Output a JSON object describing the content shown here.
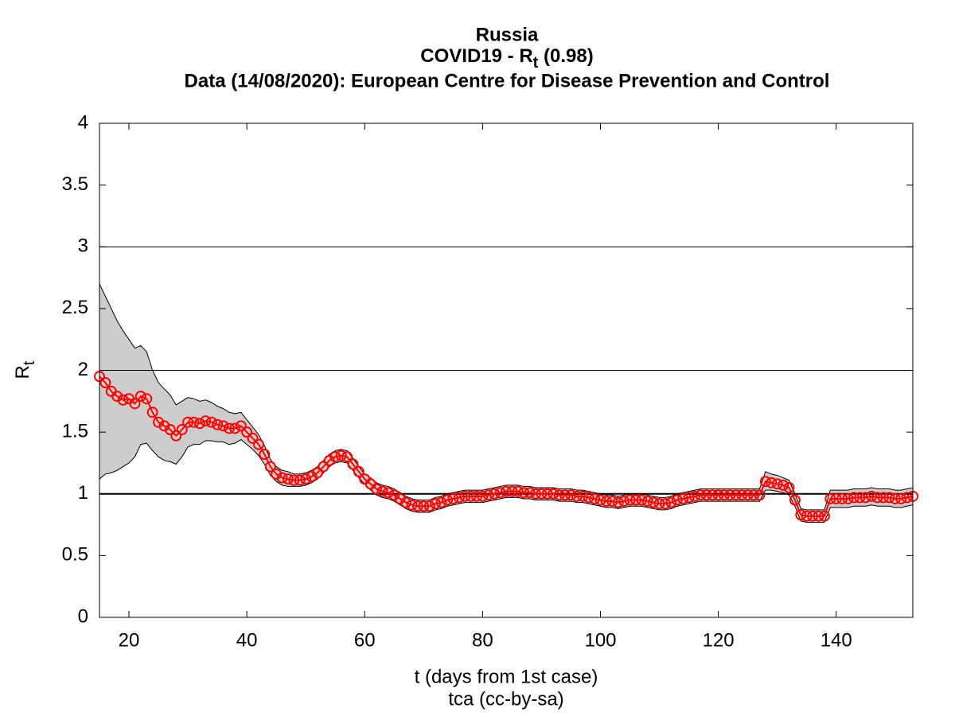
{
  "chart_data": {
    "type": "line",
    "title": "Russia",
    "subtitle_parts": [
      "COVID19 - R",
      "t",
      " (0.98)"
    ],
    "source": "Data (14/08/2020): European Centre for Disease Prevention and Control",
    "xlabel": "t (days from 1st case)",
    "caption": "tca (cc-by-sa)",
    "ylabel_parts": [
      "R",
      "t"
    ],
    "xlim": [
      15,
      153
    ],
    "ylim": [
      0,
      4
    ],
    "xticks": [
      20,
      40,
      60,
      80,
      100,
      120,
      140
    ],
    "yticks": [
      0,
      0.5,
      1,
      1.5,
      2,
      2.5,
      3,
      3.5,
      4
    ],
    "hlines": [
      1,
      2,
      3
    ],
    "color": "#ff0000",
    "band_color": "#cccccc",
    "x": [
      15,
      16,
      17,
      18,
      19,
      20,
      21,
      22,
      23,
      24,
      25,
      26,
      27,
      28,
      29,
      30,
      31,
      32,
      33,
      34,
      35,
      36,
      37,
      38,
      39,
      40,
      41,
      42,
      43,
      44,
      45,
      46,
      47,
      48,
      49,
      50,
      51,
      52,
      53,
      54,
      55,
      56,
      57,
      58,
      59,
      60,
      61,
      62,
      63,
      64,
      65,
      66,
      67,
      68,
      69,
      70,
      71,
      72,
      73,
      74,
      75,
      76,
      77,
      78,
      79,
      80,
      81,
      82,
      83,
      84,
      85,
      86,
      87,
      88,
      89,
      90,
      91,
      92,
      93,
      94,
      95,
      96,
      97,
      98,
      99,
      100,
      101,
      102,
      103,
      104,
      105,
      106,
      107,
      108,
      109,
      110,
      111,
      112,
      113,
      114,
      115,
      116,
      117,
      118,
      119,
      120,
      121,
      122,
      123,
      124,
      125,
      126,
      127,
      128,
      129,
      130,
      131,
      132,
      133,
      134,
      135,
      136,
      137,
      138,
      139,
      140,
      141,
      142,
      143,
      144,
      145,
      146,
      147,
      148,
      149,
      150,
      151,
      152,
      153
    ],
    "values": [
      1.95,
      1.9,
      1.83,
      1.79,
      1.76,
      1.77,
      1.73,
      1.79,
      1.77,
      1.66,
      1.58,
      1.55,
      1.52,
      1.47,
      1.52,
      1.58,
      1.58,
      1.57,
      1.59,
      1.58,
      1.56,
      1.55,
      1.53,
      1.53,
      1.55,
      1.5,
      1.45,
      1.4,
      1.32,
      1.22,
      1.16,
      1.13,
      1.12,
      1.11,
      1.11,
      1.12,
      1.14,
      1.17,
      1.22,
      1.27,
      1.3,
      1.31,
      1.3,
      1.24,
      1.18,
      1.12,
      1.08,
      1.04,
      1.02,
      1.01,
      0.99,
      0.96,
      0.93,
      0.91,
      0.9,
      0.9,
      0.9,
      0.92,
      0.93,
      0.95,
      0.96,
      0.97,
      0.98,
      0.98,
      0.98,
      0.98,
      0.99,
      1.0,
      1.01,
      1.02,
      1.02,
      1.02,
      1.01,
      1.01,
      1.0,
      1.0,
      1.0,
      1.0,
      0.99,
      0.99,
      0.99,
      0.98,
      0.98,
      0.97,
      0.96,
      0.95,
      0.94,
      0.94,
      0.93,
      0.94,
      0.95,
      0.95,
      0.95,
      0.94,
      0.93,
      0.92,
      0.92,
      0.93,
      0.95,
      0.96,
      0.97,
      0.98,
      0.99,
      0.99,
      0.99,
      0.99,
      0.99,
      0.99,
      0.99,
      0.99,
      0.99,
      0.99,
      0.99,
      1.1,
      1.09,
      1.08,
      1.07,
      1.05,
      0.95,
      0.83,
      0.82,
      0.82,
      0.82,
      0.82,
      0.96,
      0.96,
      0.96,
      0.96,
      0.97,
      0.97,
      0.97,
      0.98,
      0.97,
      0.97,
      0.97,
      0.96,
      0.96,
      0.97,
      0.98
    ],
    "upper": [
      2.7,
      2.6,
      2.5,
      2.4,
      2.32,
      2.25,
      2.18,
      2.2,
      2.15,
      2.0,
      1.9,
      1.85,
      1.8,
      1.72,
      1.75,
      1.78,
      1.77,
      1.75,
      1.76,
      1.74,
      1.71,
      1.69,
      1.66,
      1.65,
      1.66,
      1.6,
      1.54,
      1.48,
      1.39,
      1.28,
      1.22,
      1.19,
      1.18,
      1.16,
      1.16,
      1.17,
      1.19,
      1.22,
      1.27,
      1.32,
      1.35,
      1.36,
      1.35,
      1.29,
      1.22,
      1.16,
      1.13,
      1.09,
      1.07,
      1.06,
      1.04,
      1.01,
      0.98,
      0.96,
      0.95,
      0.95,
      0.95,
      0.97,
      0.98,
      1.0,
      1.01,
      1.02,
      1.03,
      1.03,
      1.03,
      1.03,
      1.04,
      1.05,
      1.06,
      1.07,
      1.07,
      1.07,
      1.06,
      1.06,
      1.05,
      1.05,
      1.05,
      1.05,
      1.04,
      1.04,
      1.04,
      1.03,
      1.03,
      1.02,
      1.01,
      1.0,
      0.99,
      0.99,
      0.98,
      0.99,
      1.0,
      1.0,
      1.0,
      0.99,
      0.98,
      0.97,
      0.97,
      0.98,
      1.0,
      1.01,
      1.02,
      1.03,
      1.04,
      1.04,
      1.04,
      1.04,
      1.04,
      1.04,
      1.04,
      1.04,
      1.04,
      1.04,
      1.04,
      1.18,
      1.16,
      1.15,
      1.13,
      1.11,
      1.0,
      0.88,
      0.87,
      0.87,
      0.87,
      0.87,
      1.03,
      1.03,
      1.03,
      1.03,
      1.04,
      1.04,
      1.04,
      1.05,
      1.04,
      1.04,
      1.04,
      1.03,
      1.03,
      1.04,
      1.05
    ],
    "lower": [
      1.12,
      1.16,
      1.17,
      1.19,
      1.22,
      1.25,
      1.3,
      1.4,
      1.41,
      1.35,
      1.3,
      1.27,
      1.26,
      1.24,
      1.3,
      1.38,
      1.4,
      1.4,
      1.43,
      1.43,
      1.42,
      1.42,
      1.4,
      1.41,
      1.44,
      1.4,
      1.36,
      1.31,
      1.24,
      1.15,
      1.1,
      1.07,
      1.06,
      1.06,
      1.06,
      1.07,
      1.09,
      1.12,
      1.17,
      1.22,
      1.25,
      1.26,
      1.25,
      1.19,
      1.13,
      1.08,
      1.03,
      0.99,
      0.97,
      0.96,
      0.94,
      0.91,
      0.88,
      0.86,
      0.85,
      0.85,
      0.85,
      0.87,
      0.88,
      0.9,
      0.91,
      0.92,
      0.93,
      0.93,
      0.93,
      0.93,
      0.94,
      0.95,
      0.96,
      0.97,
      0.97,
      0.97,
      0.96,
      0.96,
      0.95,
      0.95,
      0.95,
      0.95,
      0.94,
      0.94,
      0.94,
      0.93,
      0.93,
      0.92,
      0.91,
      0.9,
      0.89,
      0.89,
      0.88,
      0.89,
      0.9,
      0.9,
      0.9,
      0.89,
      0.88,
      0.87,
      0.87,
      0.88,
      0.9,
      0.91,
      0.92,
      0.93,
      0.94,
      0.94,
      0.94,
      0.94,
      0.94,
      0.94,
      0.94,
      0.94,
      0.94,
      0.94,
      0.94,
      1.03,
      1.03,
      1.02,
      1.01,
      0.99,
      0.9,
      0.78,
      0.77,
      0.77,
      0.77,
      0.77,
      0.89,
      0.89,
      0.89,
      0.89,
      0.9,
      0.9,
      0.9,
      0.91,
      0.9,
      0.9,
      0.9,
      0.89,
      0.89,
      0.9,
      0.91
    ]
  }
}
